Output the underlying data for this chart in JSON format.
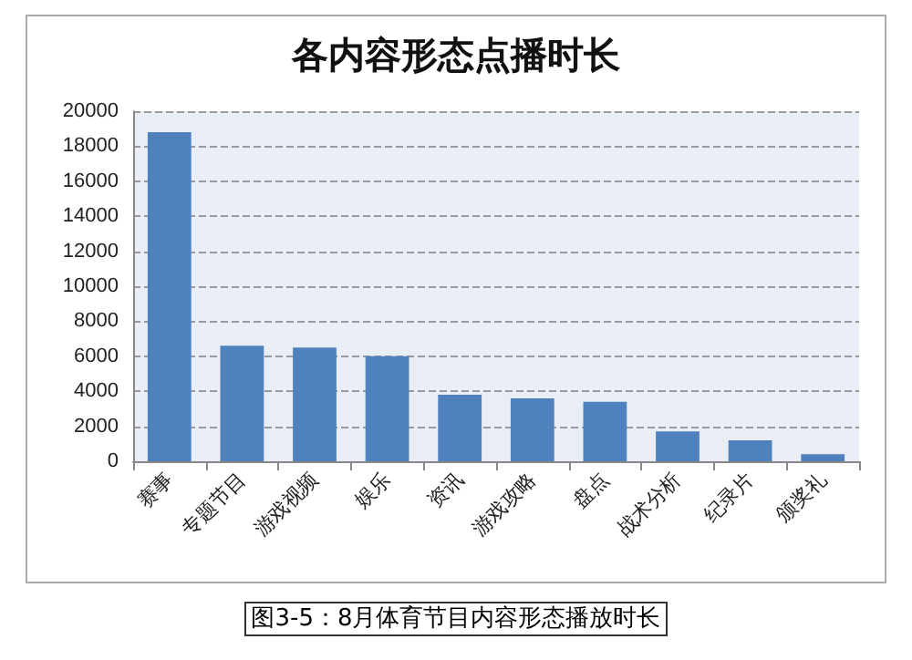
{
  "chart_data": {
    "type": "bar",
    "title": "各内容形态点播时长",
    "categories": [
      "赛事",
      "专题节目",
      "游戏视频",
      "娱乐",
      "资讯",
      "游戏攻略",
      "盘点",
      "战术分析",
      "纪录片",
      "颁奖礼"
    ],
    "values": [
      18800,
      6600,
      6500,
      6000,
      3800,
      3600,
      3400,
      1700,
      1200,
      400
    ],
    "color": "#4f81bd",
    "ylim": [
      0,
      20000
    ],
    "yticks": [
      0,
      2000,
      4000,
      6000,
      8000,
      10000,
      12000,
      14000,
      16000,
      18000,
      20000
    ],
    "grid": "y",
    "annotations": [
      "图3-5：8月体育节目内容形态播放时长"
    ]
  }
}
